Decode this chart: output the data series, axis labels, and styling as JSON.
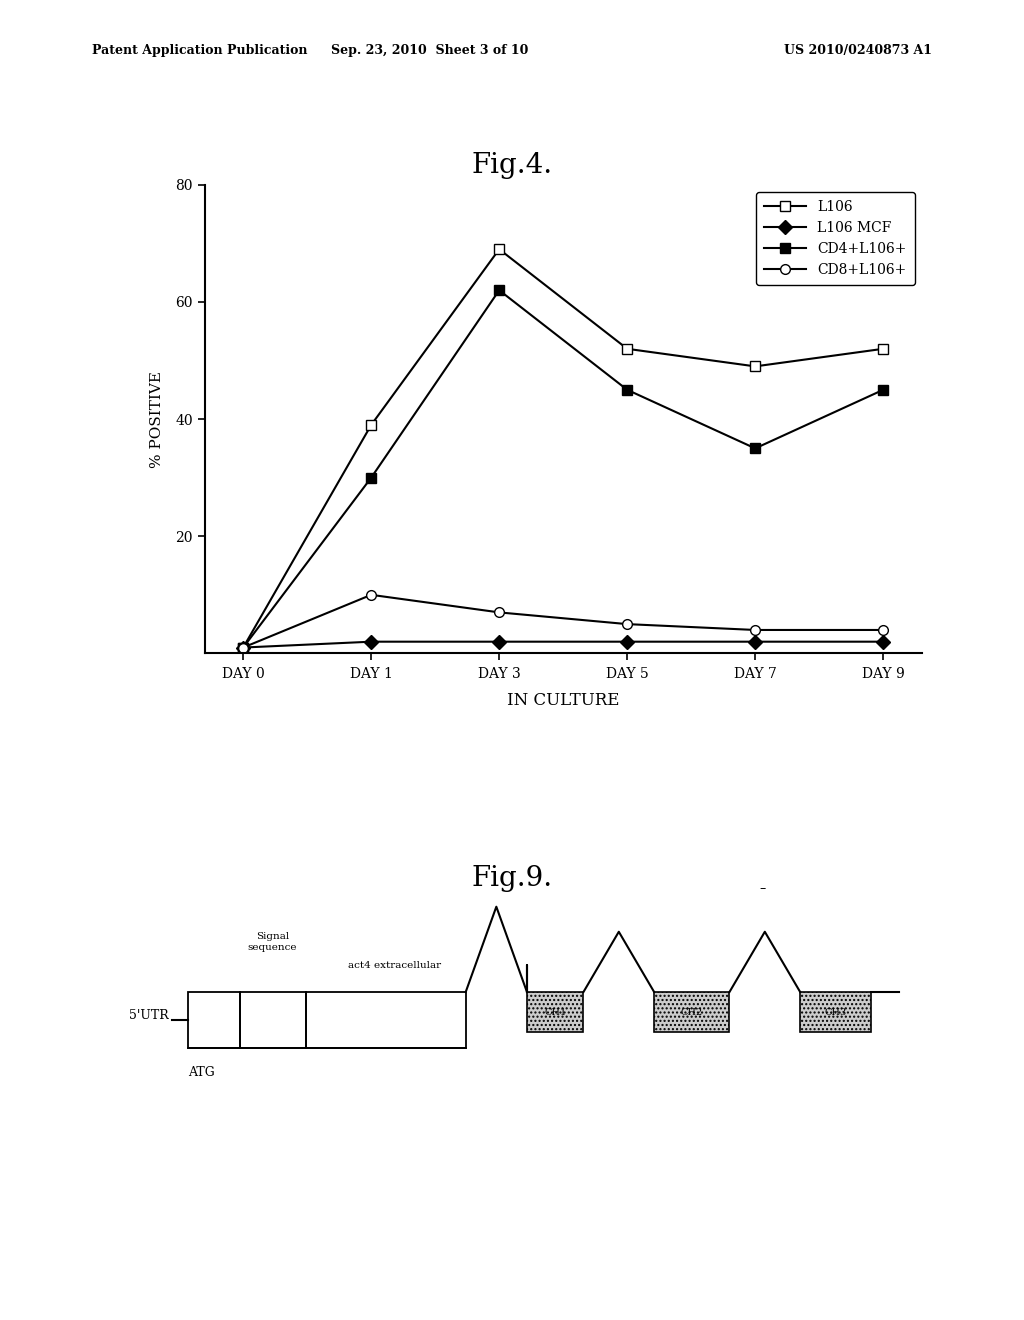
{
  "fig4_title": "Fig.4.",
  "fig9_title": "Fig.9.",
  "xlabel": "IN CULTURE",
  "ylabel": "% POSITIVE",
  "xticklabels": [
    "DAY 0",
    "DAY 1",
    "DAY 3",
    "DAY 5",
    "DAY 7",
    "DAY 9"
  ],
  "x_values": [
    0,
    1,
    2,
    3,
    4,
    5
  ],
  "ylim": [
    0,
    80
  ],
  "yticks": [
    20,
    40,
    60,
    80
  ],
  "series": [
    {
      "label": "L106",
      "values": [
        1,
        39,
        69,
        52,
        49,
        52
      ],
      "marker": "s",
      "linestyle": "-",
      "color": "black",
      "markersize": 7,
      "markerfacecolor": "white"
    },
    {
      "label": "L106 MCF",
      "values": [
        1,
        2,
        2,
        2,
        2,
        2
      ],
      "marker": "D",
      "linestyle": "-",
      "color": "black",
      "markersize": 7,
      "markerfacecolor": "black"
    },
    {
      "label": "CD4+L106+",
      "values": [
        1,
        30,
        62,
        45,
        35,
        45
      ],
      "marker": "s",
      "linestyle": "-",
      "color": "black",
      "markersize": 7,
      "markerfacecolor": "black"
    },
    {
      "label": "CD8+L106+",
      "values": [
        1,
        10,
        7,
        5,
        4,
        4
      ],
      "marker": "o",
      "linestyle": "-",
      "color": "black",
      "markersize": 7,
      "markerfacecolor": "white"
    }
  ],
  "header_left": "Patent Application Publication",
  "header_mid": "Sep. 23, 2010  Sheet 3 of 10",
  "header_right": "US 2010/0240873 A1",
  "background_color": "#ffffff"
}
